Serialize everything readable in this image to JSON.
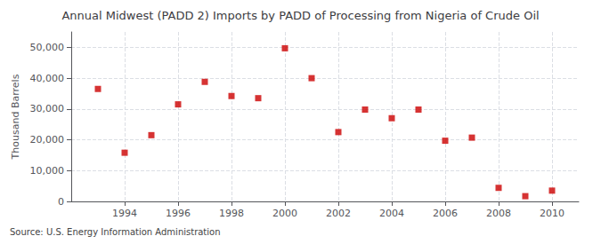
{
  "chart_data": {
    "type": "scatter",
    "title": "Annual Midwest (PADD 2) Imports by PADD of Processing from Nigeria of Crude Oil",
    "ylabel": "Thousand Barrels",
    "source": "Source: U.S. Energy Information Administration",
    "x": [
      1993,
      1994,
      1995,
      1996,
      1997,
      1998,
      1999,
      2000,
      2001,
      2002,
      2003,
      2004,
      2005,
      2006,
      2007,
      2008,
      2009,
      2010
    ],
    "values": [
      36500,
      15800,
      21500,
      31500,
      38800,
      34200,
      33500,
      49700,
      40000,
      22500,
      29800,
      27000,
      29800,
      19700,
      20700,
      4400,
      1700,
      3500
    ],
    "color": "#cc0000",
    "marker": "square",
    "xlim": [
      1992.0,
      2011.0
    ],
    "xticks": [
      1994,
      1996,
      1998,
      2000,
      2002,
      2004,
      2006,
      2008,
      2010
    ],
    "ylim": [
      0,
      55000
    ],
    "yticks": [
      0,
      {
        "value": 10000,
        "label": "10,000"
      },
      {
        "value": 20000,
        "label": "20,000"
      },
      {
        "value": 30000,
        "label": "30,000"
      },
      {
        "value": 40000,
        "label": "40,000"
      },
      {
        "value": 50000,
        "label": "50,000"
      }
    ],
    "grid": true
  }
}
